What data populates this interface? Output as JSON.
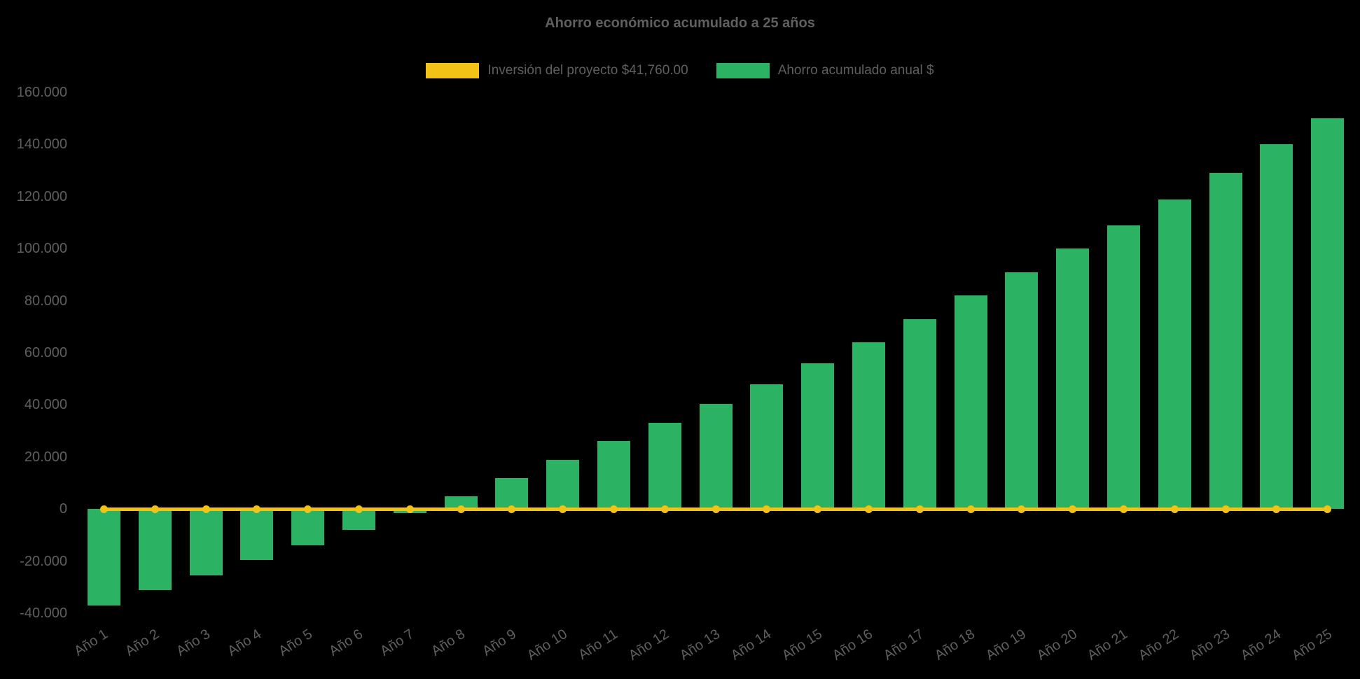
{
  "chart_data": {
    "type": "bar",
    "title": "Ahorro económico acumulado a 25 años",
    "background": "#000000",
    "text_color": "#5f5f5f",
    "legend_position": "top",
    "grid": false,
    "categories": [
      "Año 1",
      "Año 2",
      "Año 3",
      "Año 4",
      "Año 5",
      "Año 6",
      "Año 7",
      "Año 8",
      "Año 9",
      "Año 10",
      "Año 11",
      "Año 12",
      "Año 13",
      "Año 14",
      "Año 15",
      "Año 16",
      "Año 17",
      "Año 18",
      "Año 19",
      "Año 20",
      "Año 21",
      "Año 22",
      "Año 23",
      "Año 24",
      "Año 25"
    ],
    "series": [
      {
        "name": "Inversión del proyecto $41,760.00",
        "type": "line",
        "color": "#f2c216",
        "marker": "circle",
        "values": [
          0,
          0,
          0,
          0,
          0,
          0,
          0,
          0,
          0,
          0,
          0,
          0,
          0,
          0,
          0,
          0,
          0,
          0,
          0,
          0,
          0,
          0,
          0,
          0,
          0
        ]
      },
      {
        "name": "Ahorro acumulado anual $",
        "type": "bar",
        "color": "#2cb263",
        "values": [
          -37000,
          -31000,
          -25500,
          -19500,
          -14000,
          -8000,
          -1500,
          5000,
          12000,
          19000,
          26000,
          33000,
          40500,
          48000,
          56000,
          64000,
          73000,
          82000,
          91000,
          100000,
          109000,
          119000,
          129000,
          140000,
          150000
        ]
      }
    ],
    "ylim": [
      -40000,
      160000
    ],
    "ytick_step": 20000,
    "ytick_labels": [
      "160.000",
      "140.000",
      "120.000",
      "100.000",
      "80.000",
      "60.000",
      "40.000",
      "20.000",
      "0",
      "-20.000",
      "-40.000"
    ]
  }
}
